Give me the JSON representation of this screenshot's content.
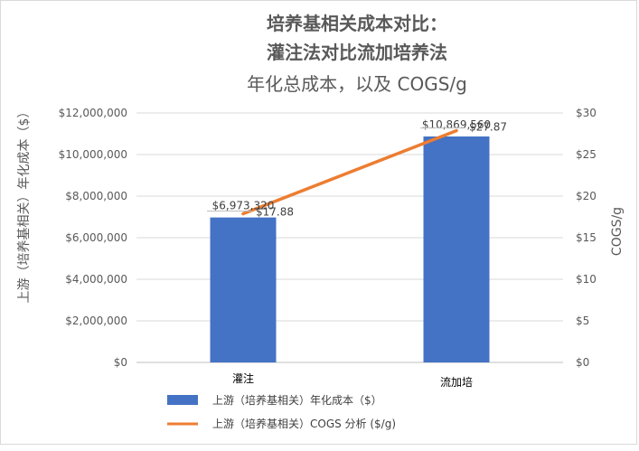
{
  "chart_data": {
    "type": "bar",
    "title": "培养基相关成本对比：",
    "title_line2": "灌注法对比流加培养法",
    "subtitle": "年化总成本，以及 COGS/g",
    "categories": [
      "灌注",
      "流加培"
    ],
    "ylabel_left": "上游（培养基相关）年化成本（$）",
    "ylabel_right": "COGS/g",
    "y_left": {
      "range": [
        0,
        12000000
      ],
      "ticks": [
        0,
        2000000,
        4000000,
        6000000,
        8000000,
        10000000,
        12000000
      ],
      "tick_labels": [
        "$0",
        "$2,000,000",
        "$4,000,000",
        "$6,000,000",
        "$8,000,000",
        "$10,000,000",
        "$12,000,000"
      ]
    },
    "y_right": {
      "range": [
        0,
        30
      ],
      "ticks": [
        0,
        5,
        10,
        15,
        20,
        25,
        30
      ],
      "tick_labels": [
        "$0",
        "$5",
        "$10",
        "$15",
        "$20",
        "$25",
        "$30"
      ]
    },
    "grid": true,
    "legend_position": "bottom",
    "series": [
      {
        "name": "上游（培养基相关）年化成本（$）",
        "type": "bar",
        "axis": "left",
        "color": "#4472C4",
        "values": [
          6973320,
          10869560
        ],
        "labels": [
          "$6,973,320",
          "$10,869,560"
        ]
      },
      {
        "name": "上游（培养基相关）COGS 分析 ($/g)",
        "type": "line",
        "axis": "right",
        "color": "#ED7D31",
        "values": [
          17.88,
          27.87
        ],
        "labels": [
          "$17.88",
          "$27.87"
        ]
      }
    ]
  }
}
